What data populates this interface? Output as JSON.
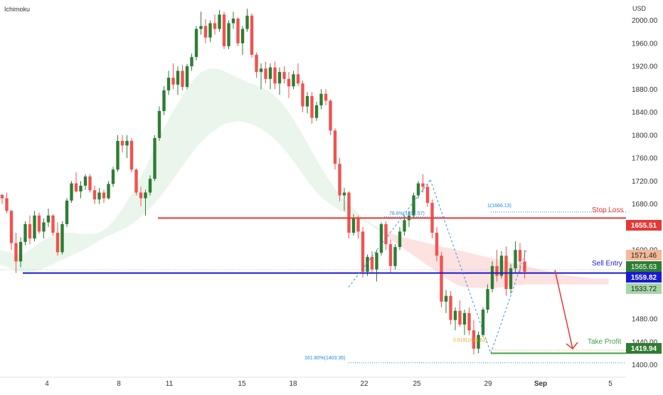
{
  "indicator_label": "Ichimoku",
  "currency_label": "USD",
  "colors": {
    "up": "#26a69a",
    "up_body": "#2e7d32",
    "down": "#ef5350",
    "cloud_bull": "#e8f5e9",
    "cloud_bear": "#fde0e0",
    "stop_line": "#e53935",
    "entry_line": "#1a1ad0",
    "tp_line": "#43a047",
    "fib_blue": "#1e88e5",
    "fib_orange": "#f9a825",
    "arrow": "#e53935",
    "grid": "#ffffff",
    "axis_text": "#333333"
  },
  "chart_data": {
    "type": "candlestick",
    "y_axis": {
      "ticks": [
        2000,
        1960,
        1920,
        1880,
        1840,
        1800,
        1760,
        1720,
        1680,
        1640,
        1600,
        1480,
        1440,
        1400
      ],
      "range": [
        1387,
        2023
      ],
      "unit": "USD"
    },
    "x_axis": {
      "ticks": [
        "4",
        "8",
        "11",
        "15",
        "18",
        "22",
        "25",
        "29",
        "Sep",
        "5"
      ]
    },
    "candles": [
      [
        1696,
        1697,
        1680,
        1690
      ],
      [
        1690,
        1700,
        1664,
        1668
      ],
      [
        1668,
        1670,
        1600,
        1612
      ],
      [
        1612,
        1630,
        1560,
        1580
      ],
      [
        1580,
        1622,
        1570,
        1614
      ],
      [
        1614,
        1650,
        1608,
        1645
      ],
      [
        1645,
        1660,
        1610,
        1620
      ],
      [
        1620,
        1668,
        1615,
        1660
      ],
      [
        1660,
        1665,
        1628,
        1632
      ],
      [
        1632,
        1655,
        1620,
        1648
      ],
      [
        1648,
        1672,
        1640,
        1660
      ],
      [
        1660,
        1662,
        1625,
        1630
      ],
      [
        1630,
        1648,
        1590,
        1596
      ],
      [
        1596,
        1650,
        1592,
        1645
      ],
      [
        1645,
        1690,
        1640,
        1686
      ],
      [
        1686,
        1720,
        1682,
        1716
      ],
      [
        1716,
        1735,
        1700,
        1702
      ],
      [
        1702,
        1720,
        1690,
        1712
      ],
      [
        1712,
        1732,
        1705,
        1728
      ],
      [
        1728,
        1732,
        1700,
        1704
      ],
      [
        1704,
        1712,
        1680,
        1688
      ],
      [
        1688,
        1708,
        1680,
        1700
      ],
      [
        1700,
        1705,
        1682,
        1690
      ],
      [
        1690,
        1720,
        1688,
        1715
      ],
      [
        1715,
        1745,
        1710,
        1740
      ],
      [
        1740,
        1800,
        1736,
        1790
      ],
      [
        1790,
        1800,
        1770,
        1782
      ],
      [
        1782,
        1800,
        1760,
        1790
      ],
      [
        1790,
        1795,
        1735,
        1740
      ],
      [
        1740,
        1742,
        1695,
        1700
      ],
      [
        1700,
        1710,
        1676,
        1690
      ],
      [
        1690,
        1705,
        1660,
        1700
      ],
      [
        1700,
        1730,
        1695,
        1724
      ],
      [
        1724,
        1800,
        1720,
        1795
      ],
      [
        1795,
        1850,
        1790,
        1842
      ],
      [
        1842,
        1885,
        1835,
        1878
      ],
      [
        1878,
        1912,
        1870,
        1900
      ],
      [
        1900,
        1925,
        1880,
        1888
      ],
      [
        1888,
        1920,
        1870,
        1912
      ],
      [
        1912,
        1922,
        1878,
        1884
      ],
      [
        1884,
        1924,
        1880,
        1920
      ],
      [
        1920,
        1942,
        1912,
        1936
      ],
      [
        1936,
        1990,
        1930,
        1985
      ],
      [
        1985,
        2015,
        1975,
        1990
      ],
      [
        1990,
        2002,
        1960,
        1970
      ],
      [
        1970,
        2000,
        1962,
        1995
      ],
      [
        1995,
        2010,
        1975,
        1985
      ],
      [
        1985,
        2018,
        1980,
        2010
      ],
      [
        2010,
        2015,
        1950,
        1955
      ],
      [
        1955,
        2000,
        1950,
        1995
      ],
      [
        1995,
        2015,
        1985,
        2003
      ],
      [
        2003,
        2005,
        1955,
        1960
      ],
      [
        1960,
        1990,
        1940,
        1985
      ],
      [
        1985,
        2020,
        1980,
        2008
      ],
      [
        2008,
        2012,
        1935,
        1940
      ],
      [
        1940,
        1944,
        1900,
        1910
      ],
      [
        1910,
        1925,
        1880,
        1916
      ],
      [
        1916,
        1928,
        1890,
        1898
      ],
      [
        1898,
        1925,
        1880,
        1918
      ],
      [
        1918,
        1928,
        1880,
        1890
      ],
      [
        1890,
        1918,
        1870,
        1910
      ],
      [
        1910,
        1920,
        1890,
        1898
      ],
      [
        1898,
        1910,
        1865,
        1885
      ],
      [
        1885,
        1912,
        1880,
        1906
      ],
      [
        1906,
        1925,
        1885,
        1890
      ],
      [
        1890,
        1895,
        1840,
        1850
      ],
      [
        1850,
        1875,
        1838,
        1868
      ],
      [
        1868,
        1875,
        1820,
        1830
      ],
      [
        1830,
        1858,
        1825,
        1852
      ],
      [
        1852,
        1880,
        1845,
        1872
      ],
      [
        1872,
        1880,
        1852,
        1860
      ],
      [
        1860,
        1862,
        1800,
        1808
      ],
      [
        1808,
        1812,
        1740,
        1750
      ],
      [
        1750,
        1760,
        1685,
        1695
      ],
      [
        1695,
        1708,
        1668,
        1700
      ],
      [
        1700,
        1702,
        1620,
        1630
      ],
      [
        1630,
        1662,
        1625,
        1655
      ],
      [
        1655,
        1660,
        1620,
        1632
      ],
      [
        1632,
        1640,
        1552,
        1562
      ],
      [
        1562,
        1592,
        1555,
        1588
      ],
      [
        1588,
        1598,
        1560,
        1566
      ],
      [
        1566,
        1600,
        1545,
        1595
      ],
      [
        1595,
        1648,
        1590,
        1645
      ],
      [
        1645,
        1650,
        1600,
        1610
      ],
      [
        1610,
        1618,
        1560,
        1572
      ],
      [
        1572,
        1610,
        1566,
        1605
      ],
      [
        1605,
        1640,
        1600,
        1632
      ],
      [
        1632,
        1660,
        1625,
        1652
      ],
      [
        1652,
        1668,
        1640,
        1660
      ],
      [
        1660,
        1700,
        1655,
        1695
      ],
      [
        1695,
        1720,
        1690,
        1716
      ],
      [
        1716,
        1732,
        1700,
        1710
      ],
      [
        1710,
        1715,
        1675,
        1682
      ],
      [
        1682,
        1688,
        1620,
        1630
      ],
      [
        1630,
        1640,
        1580,
        1590
      ],
      [
        1590,
        1596,
        1500,
        1510
      ],
      [
        1510,
        1530,
        1490,
        1520
      ],
      [
        1520,
        1528,
        1470,
        1478
      ],
      [
        1478,
        1500,
        1460,
        1494
      ],
      [
        1494,
        1512,
        1466,
        1470
      ],
      [
        1470,
        1496,
        1452,
        1490
      ],
      [
        1490,
        1500,
        1452,
        1460
      ],
      [
        1460,
        1478,
        1418,
        1428
      ],
      [
        1428,
        1458,
        1420,
        1452
      ],
      [
        1452,
        1500,
        1448,
        1496
      ],
      [
        1496,
        1540,
        1490,
        1532
      ],
      [
        1532,
        1580,
        1526,
        1572
      ],
      [
        1572,
        1600,
        1545,
        1555
      ],
      [
        1555,
        1598,
        1550,
        1590
      ],
      [
        1590,
        1606,
        1520,
        1532
      ],
      [
        1532,
        1575,
        1524,
        1568
      ],
      [
        1568,
        1615,
        1560,
        1600
      ],
      [
        1600,
        1612,
        1560,
        1580
      ],
      [
        1580,
        1600,
        1550,
        1562
      ]
    ],
    "cloud": {
      "top": [
        1600,
        1598,
        1596,
        1594,
        1592,
        1594,
        1600,
        1606,
        1612,
        1618,
        1622,
        1626,
        1630,
        1630,
        1630,
        1630,
        1628,
        1628,
        1628,
        1628,
        1630,
        1634,
        1640,
        1650,
        1660,
        1672,
        1686,
        1700,
        1716,
        1732,
        1750,
        1768,
        1786,
        1806,
        1822,
        1838,
        1852,
        1866,
        1880,
        1892,
        1902,
        1910,
        1914,
        1916,
        1916,
        1914,
        1910,
        1906,
        1902,
        1898,
        1894,
        1890,
        1888,
        1884,
        1880,
        1875,
        1868,
        1860,
        1850,
        1838,
        1825,
        1810,
        1795,
        1780,
        1765,
        1750,
        1736,
        1722,
        1710,
        1698,
        1688,
        1680,
        1672,
        1664,
        1656,
        1650,
        1644,
        1640,
        1636,
        1632,
        1628,
        1625,
        1622,
        1620,
        1618,
        1616,
        1614,
        1612,
        1610,
        1608,
        1606,
        1604,
        1602,
        1600,
        1598,
        1596,
        1594,
        1592,
        1590,
        1588,
        1586,
        1584,
        1582,
        1580,
        1578,
        1576,
        1574,
        1572,
        1570,
        1568,
        1566,
        1564,
        1562,
        1560,
        1558,
        1556,
        1555,
        1554,
        1553,
        1552,
        1551,
        1550,
        1550,
        1550,
        1550
      ],
      "bottom": [
        1575,
        1572,
        1568,
        1565,
        1562,
        1562,
        1562,
        1563,
        1565,
        1568,
        1572,
        1576,
        1580,
        1584,
        1588,
        1592,
        1596,
        1600,
        1605,
        1610,
        1615,
        1620,
        1624,
        1628,
        1632,
        1636,
        1640,
        1646,
        1652,
        1660,
        1668,
        1676,
        1686,
        1696,
        1708,
        1720,
        1732,
        1744,
        1756,
        1768,
        1778,
        1788,
        1796,
        1804,
        1810,
        1816,
        1820,
        1822,
        1824,
        1824,
        1822,
        1820,
        1816,
        1812,
        1806,
        1800,
        1792,
        1784,
        1774,
        1764,
        1752,
        1740,
        1728,
        1716,
        1706,
        1696,
        1688,
        1682,
        1676,
        1670,
        1666,
        1662,
        1658,
        1654,
        1650,
        1646,
        1640,
        1634,
        1628,
        1622,
        1616,
        1610,
        1604,
        1598,
        1592,
        1586,
        1580,
        1574,
        1568,
        1562,
        1556,
        1550,
        1545,
        1540,
        1537,
        1535,
        1534,
        1534,
        1534,
        1534,
        1534,
        1534,
        1535,
        1536,
        1537,
        1538,
        1539,
        1540,
        1540,
        1540,
        1540,
        1540,
        1540,
        1540,
        1540,
        1540,
        1540,
        1540,
        1540,
        1540,
        1540,
        1540,
        1540,
        1540,
        1540
      ]
    },
    "levels": {
      "stop_loss": {
        "label": "Stop Loss",
        "value": 1655.51,
        "price_tag": "1655.51"
      },
      "sell_entry": {
        "label": "Sell Entry",
        "value": 1559.82,
        "price_tag": "1559.82"
      },
      "take_profit": {
        "label": "Take Profit",
        "value": 1419.94,
        "price_tag": "1419.94"
      }
    },
    "fib_labels": {
      "fib_1": "1(1666.13)",
      "fib_786": "78.6%(1657.57)",
      "fib_0618": "0.618(1425.63)",
      "fib_1618": "161.80%(1403.35)"
    },
    "price_tags": {
      "tag_1571": "1571.46",
      "tag_1565": "1565.63",
      "tag_1533": "1533.72"
    }
  }
}
